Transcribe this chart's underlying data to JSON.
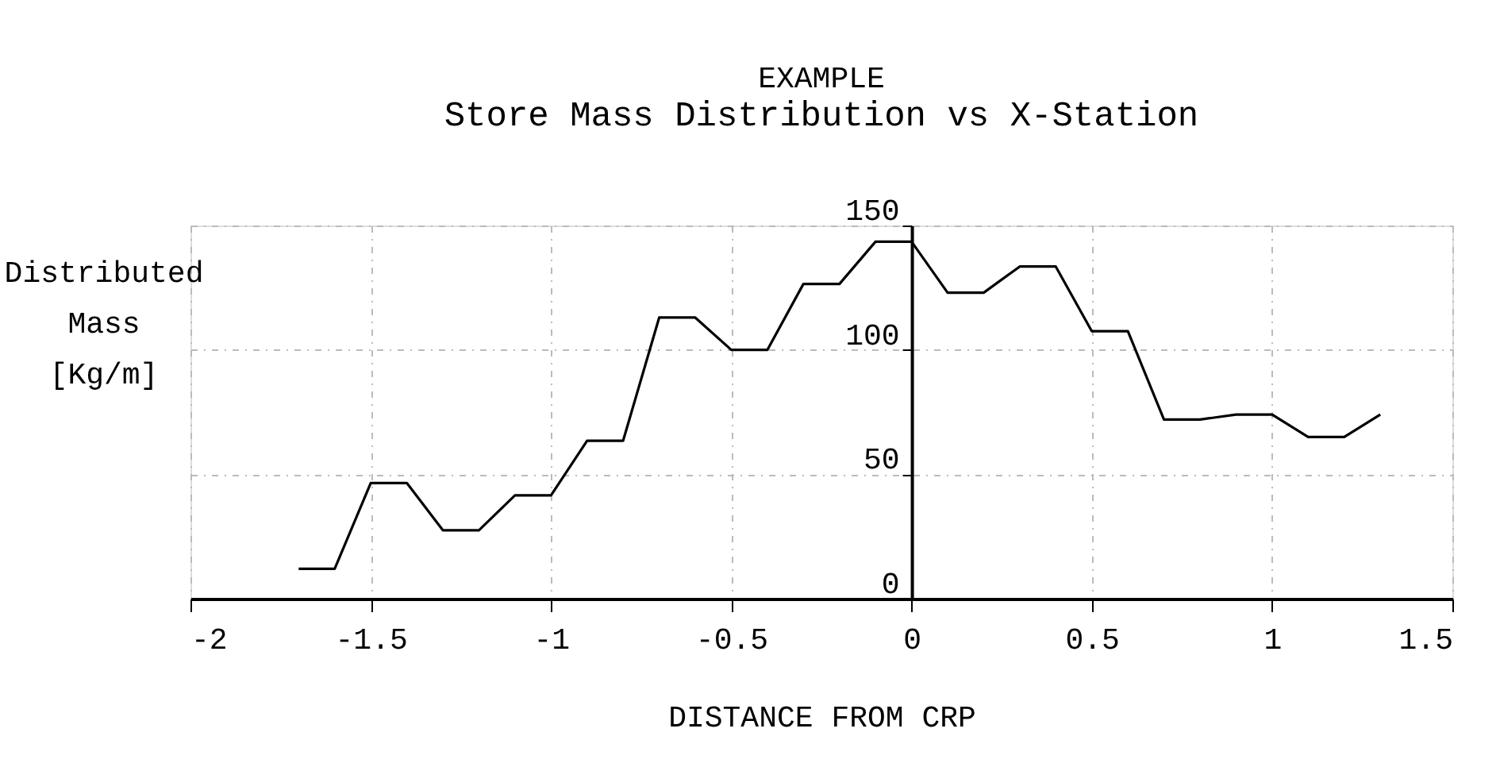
{
  "chart_data": {
    "type": "line",
    "title": "EXAMPLE",
    "subtitle": "Store Mass Distribution vs X-Station",
    "xlabel": "DISTANCE FROM CRP",
    "ylabel": "Distributed Mass [Kg/m]",
    "x": [
      -1.7,
      -1.6,
      -1.5,
      -1.4,
      -1.3,
      -1.2,
      -1.1,
      -1.0,
      -0.9,
      -0.8,
      -0.7,
      -0.6,
      -0.5,
      -0.4,
      -0.3,
      -0.2,
      -0.1,
      0,
      0.1,
      0.2,
      0.3,
      0.4,
      0.5,
      0.6,
      0.7,
      0.8,
      0.9,
      1.0,
      1.1,
      1.2,
      1.3
    ],
    "series": [
      {
        "color": "#000000",
        "values": [
          12,
          12,
          46.5,
          46.5,
          27.5,
          27.5,
          41.5,
          41.5,
          63.5,
          63.5,
          113,
          113,
          100,
          100,
          126.5,
          126.5,
          143.5,
          143.5,
          123,
          123,
          133.5,
          133.5,
          107.5,
          107.5,
          72,
          72,
          74,
          74,
          65,
          65,
          74
        ]
      }
    ],
    "xlim": [
      -2,
      1.5
    ],
    "xticks": [
      -2,
      -1.5,
      -1,
      -0.5,
      0,
      0.5,
      1,
      1.5
    ],
    "ylim": [
      0,
      150
    ],
    "yticks": [
      0,
      50,
      100,
      150
    ],
    "grid": true,
    "marker": "none",
    "line_style": "solid"
  }
}
